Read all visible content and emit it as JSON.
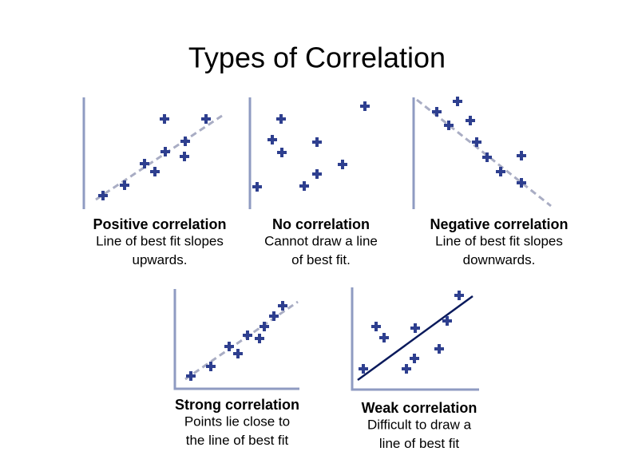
{
  "title": "Types of Correlation",
  "panels": [
    {
      "heading": "Positive correlation",
      "caption": [
        "Line of best fit slopes",
        "upwards."
      ]
    },
    {
      "heading": "No correlation",
      "caption": [
        "Cannot draw a line",
        "of best fit."
      ]
    },
    {
      "heading": "Negative correlation",
      "caption": [
        "Line of best fit slopes",
        "downwards."
      ]
    },
    {
      "heading": "Strong correlation",
      "caption": [
        "Points lie close to",
        "the line of best fit"
      ]
    },
    {
      "heading": "Weak correlation",
      "caption": [
        "Difficult to draw a",
        "line of best fit"
      ]
    }
  ]
}
